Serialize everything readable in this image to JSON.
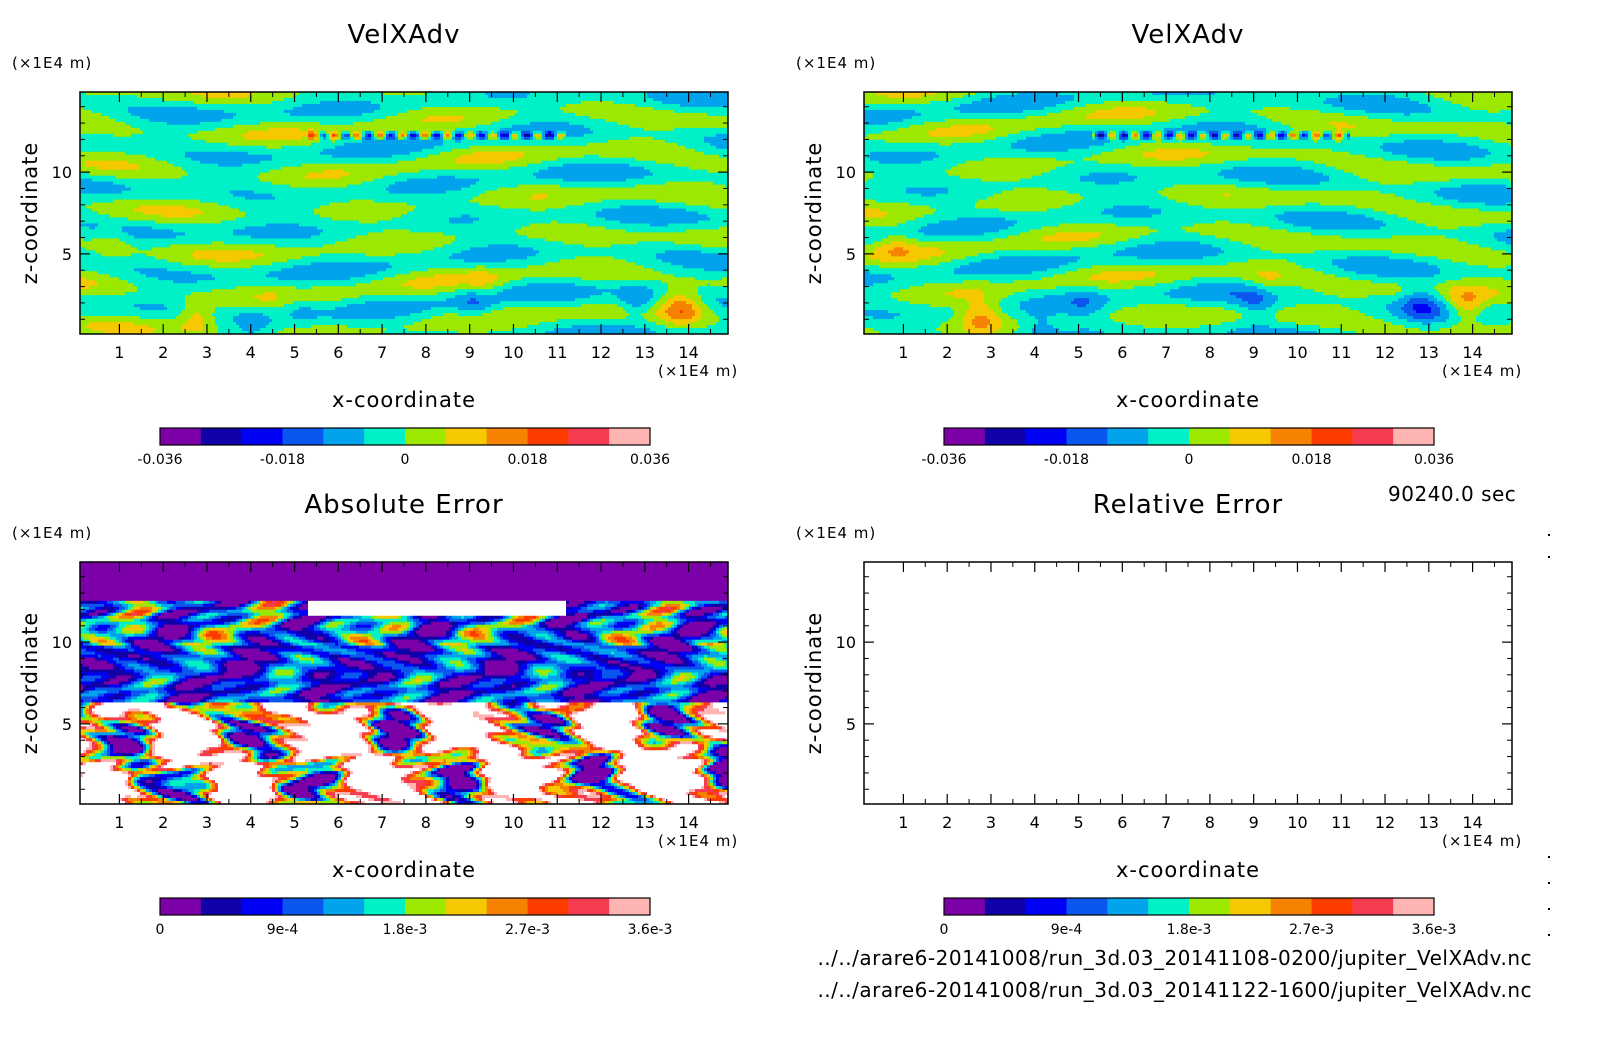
{
  "colors": {
    "palette": [
      "#7c00a8",
      "#0f00a8",
      "#0000f5",
      "#0a56ee",
      "#00a3ec",
      "#00f0c8",
      "#9ce800",
      "#f5c800",
      "#f58200",
      "#ff3c00",
      "#f53c50",
      "#ffb4b4"
    ],
    "frame": "#000000"
  },
  "footer": {
    "time": "90240.0 sec",
    "file1": "../../arare6-20141008/run_3d.03_20141108-0200/jupiter_VelXAdv.nc",
    "file2": "../../arare6-20141008/run_3d.03_20141122-1600/jupiter_VelXAdv.nc"
  },
  "chart_data": [
    {
      "type": "heatmap",
      "title": "VelXAdv",
      "xlabel": "x-coordinate",
      "ylabel": "z-coordinate",
      "x_unit": "(×1E4 m)",
      "y_unit": "(×1E4 m)",
      "xlim": [
        0.1,
        14.9
      ],
      "ylim": [
        0.1,
        14.9
      ],
      "x_ticks": [
        "1",
        "2",
        "3",
        "4",
        "5",
        "6",
        "7",
        "8",
        "9",
        "10",
        "11",
        "12",
        "13",
        "14"
      ],
      "y_ticks": [
        "5",
        "10"
      ],
      "colorbar": {
        "levels": [
          -0.036,
          -0.03,
          -0.024,
          -0.018,
          -0.012,
          -0.006,
          0,
          0.006,
          0.012,
          0.018,
          0.024,
          0.03,
          0.036
        ],
        "labels": [
          "-0.036",
          "-0.018",
          "0",
          "0.018",
          "0.036"
        ]
      },
      "field": "advective"
    },
    {
      "type": "heatmap",
      "title": "VelXAdv",
      "xlabel": "x-coordinate",
      "ylabel": "z-coordinate",
      "x_unit": "(×1E4 m)",
      "y_unit": "(×1E4 m)",
      "xlim": [
        0.1,
        14.9
      ],
      "ylim": [
        0.1,
        14.9
      ],
      "x_ticks": [
        "1",
        "2",
        "3",
        "4",
        "5",
        "6",
        "7",
        "8",
        "9",
        "10",
        "11",
        "12",
        "13",
        "14"
      ],
      "y_ticks": [
        "5",
        "10"
      ],
      "colorbar": {
        "levels": [
          -0.036,
          -0.03,
          -0.024,
          -0.018,
          -0.012,
          -0.006,
          0,
          0.006,
          0.012,
          0.018,
          0.024,
          0.03,
          0.036
        ],
        "labels": [
          "-0.036",
          "-0.018",
          "0",
          "0.018",
          "0.036"
        ]
      },
      "field": "advective"
    },
    {
      "type": "heatmap",
      "title": "Absolute Error",
      "xlabel": "x-coordinate",
      "ylabel": "z-coordinate",
      "x_unit": "(×1E4 m)",
      "y_unit": "(×1E4 m)",
      "xlim": [
        0.1,
        14.9
      ],
      "ylim": [
        0.1,
        14.9
      ],
      "x_ticks": [
        "1",
        "2",
        "3",
        "4",
        "5",
        "6",
        "7",
        "8",
        "9",
        "10",
        "11",
        "12",
        "13",
        "14"
      ],
      "y_ticks": [
        "5",
        "10"
      ],
      "colorbar": {
        "levels": [
          0,
          0.0003,
          0.0006,
          0.0009,
          0.0012,
          0.0015,
          0.0018,
          0.0021,
          0.0024,
          0.0027,
          0.003,
          0.0033,
          0.0036
        ],
        "labels": [
          "0",
          "9e-4",
          "1.8e-3",
          "2.7e-3",
          "3.6e-3"
        ]
      },
      "field": "error"
    },
    {
      "type": "heatmap",
      "title": "Relative Error",
      "xlabel": "x-coordinate",
      "ylabel": "z-coordinate",
      "x_unit": "(×1E4 m)",
      "y_unit": "(×1E4 m)",
      "xlim": [
        0.1,
        14.9
      ],
      "ylim": [
        0.1,
        14.9
      ],
      "x_ticks": [
        "1",
        "2",
        "3",
        "4",
        "5",
        "6",
        "7",
        "8",
        "9",
        "10",
        "11",
        "12",
        "13",
        "14"
      ],
      "y_ticks": [
        "5",
        "10"
      ],
      "colorbar": {
        "levels": [
          0,
          0.0003,
          0.0006,
          0.0009,
          0.0012,
          0.0015,
          0.0018,
          0.0021,
          0.0024,
          0.0027,
          0.003,
          0.0033,
          0.0036
        ],
        "labels": [
          "0",
          "9e-4",
          "1.8e-3",
          "2.7e-3",
          "3.6e-3"
        ]
      },
      "field": "blank"
    }
  ]
}
